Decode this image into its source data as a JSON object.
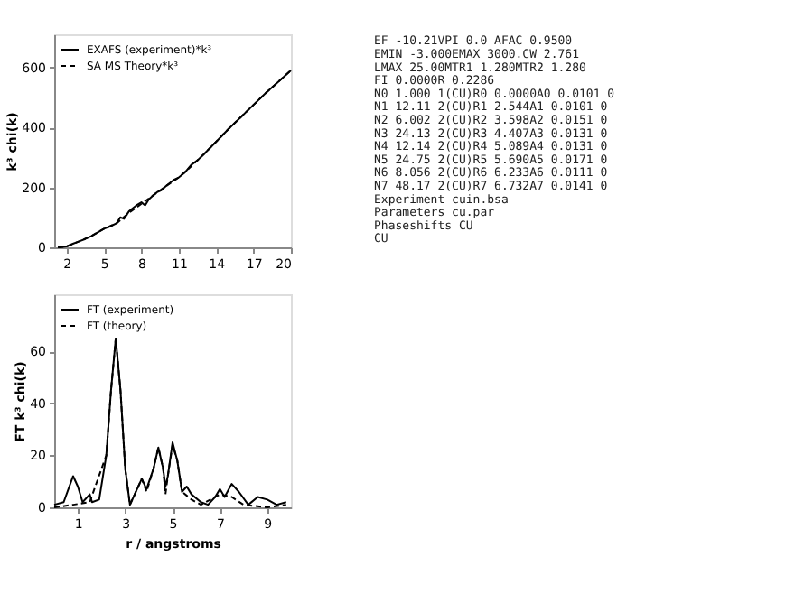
{
  "chart_data": [
    {
      "type": "line",
      "xlabel": null,
      "ylabel": "k³ chi(k)",
      "xlim": [
        1,
        20
      ],
      "ylim": [
        0,
        710
      ],
      "xticks": [
        2,
        5,
        8,
        11,
        14,
        17,
        20
      ],
      "yticks": [
        0,
        200,
        400,
        600
      ],
      "legend": "top left",
      "grid": false,
      "marker": "none",
      "series": [
        {
          "name": "EXAFS (experiment)*k³",
          "color": "#000000",
          "line_style": "solid",
          "x": [
            1.3,
            2,
            2.5,
            3,
            3.5,
            4,
            4.5,
            5,
            5.5,
            6,
            6.3,
            6.6,
            7,
            7.3,
            7.6,
            8,
            8.3,
            8.6,
            9,
            9.3,
            9.6,
            10,
            10.3,
            10.6,
            11,
            11.5,
            12,
            12.5,
            13,
            14,
            15,
            16,
            17,
            18,
            19,
            20
          ],
          "values": [
            0,
            3,
            12,
            20,
            28,
            38,
            50,
            62,
            70,
            80,
            100,
            95,
            120,
            130,
            140,
            150,
            140,
            160,
            175,
            185,
            190,
            205,
            215,
            225,
            233,
            250,
            275,
            290,
            310,
            352,
            395,
            435,
            475,
            515,
            552,
            590
          ]
        },
        {
          "name": "SA MS Theory*k³",
          "color": "#000000",
          "line_style": "dashed",
          "x": [
            1.3,
            2,
            3,
            4,
            5,
            6,
            7,
            8,
            9,
            10,
            11,
            12,
            13,
            14,
            15,
            16,
            17,
            18,
            19,
            20
          ],
          "values": [
            0,
            3,
            20,
            38,
            62,
            80,
            115,
            145,
            175,
            205,
            233,
            270,
            310,
            352,
            395,
            435,
            475,
            515,
            552,
            590
          ]
        }
      ]
    },
    {
      "type": "line",
      "xlabel": "r / angstroms",
      "ylabel": "FT k³ chi(k)",
      "xlim": [
        0,
        10
      ],
      "ylim": [
        0,
        82
      ],
      "xticks": [
        1,
        3,
        5,
        7,
        9
      ],
      "yticks": [
        0,
        20,
        40,
        60
      ],
      "legend": "top left",
      "grid": false,
      "marker": "none",
      "series": [
        {
          "name": "FT (experiment)",
          "color": "#000000",
          "line_style": "solid",
          "x": [
            0,
            0.4,
            0.8,
            1.0,
            1.2,
            1.5,
            1.6,
            1.9,
            2.2,
            2.4,
            2.6,
            2.8,
            3.0,
            3.2,
            3.4,
            3.7,
            3.9,
            4.2,
            4.4,
            4.6,
            4.7,
            4.8,
            5.0,
            5.2,
            5.4,
            5.6,
            5.8,
            6.2,
            6.5,
            6.8,
            7.0,
            7.2,
            7.5,
            7.8,
            8.2,
            8.6,
            9.0,
            9.4,
            9.8
          ],
          "values": [
            1,
            2,
            12,
            8,
            2,
            5,
            2,
            3,
            20,
            45,
            65,
            45,
            15,
            1,
            5,
            11,
            7,
            15,
            23,
            15,
            8,
            12,
            25,
            18,
            6,
            8,
            5,
            2,
            1,
            4,
            7,
            4,
            9,
            6,
            1,
            4,
            3,
            1,
            2
          ]
        },
        {
          "name": "FT (theory)",
          "color": "#000000",
          "line_style": "dashed",
          "x": [
            0,
            0.8,
            1.5,
            2.2,
            2.4,
            2.6,
            2.8,
            3.0,
            3.2,
            3.4,
            3.7,
            3.9,
            4.2,
            4.4,
            4.6,
            4.7,
            4.8,
            5.0,
            5.2,
            5.4,
            5.8,
            6.2,
            7.0,
            7.5,
            8.0,
            9.0,
            9.8
          ],
          "values": [
            0,
            1,
            2,
            20,
            45,
            65,
            45,
            15,
            1,
            5,
            11,
            6,
            15,
            23,
            15,
            5,
            12,
            24,
            18,
            6,
            3,
            1,
            5,
            4,
            1,
            0,
            1
          ]
        }
      ]
    },
    {
      "type": "other",
      "annotations": [
        "EF    -10.21VPI      0.0 AFAC  0.9500",
        "EMIN  -3.000EMAX  3000.CW     2.761",
        "LMAX  25.00MTR1   1.280MTR2   1.280",
        "FI    0.0000R      0.2286",
        "N0    1.000 1(CU)R0  0.0000A0  0.0101 0",
        "N1    12.11 2(CU)R1  2.544A1   0.0101 0",
        "N2    6.002 2(CU)R2  3.598A2   0.0151 0",
        "N3    24.13 2(CU)R3  4.407A3   0.0131 0",
        "N4    12.14 2(CU)R4  5.089A4   0.0131 0",
        "N5    24.75 2(CU)R5  5.690A5   0.0171 0",
        "N6    8.056 2(CU)R6  6.233A6   0.0111 0",
        "N7    48.17 2(CU)R7  6.732A7   0.0141 0",
        "Experiment cuin.bsa",
        "Parameters cu.par",
        "Phaseshifts CU",
        "            CU"
      ]
    }
  ]
}
